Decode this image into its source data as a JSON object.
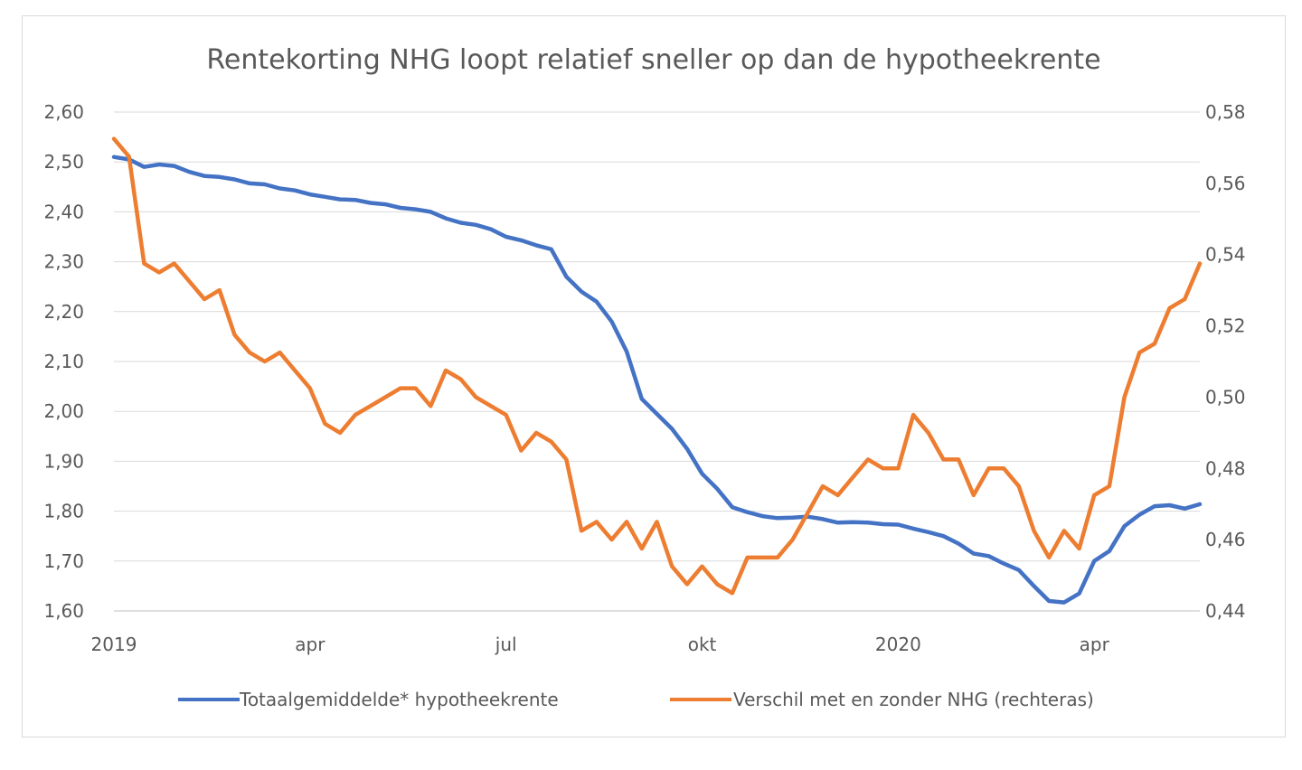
{
  "chart_data": {
    "type": "line",
    "title": "Rentekorting NHG loopt relatief sneller op dan de hypotheekrente",
    "xlabel": "",
    "ylabel": "",
    "x_tick_labels": [
      "2019",
      "apr",
      "jul",
      "okt",
      "2020",
      "apr"
    ],
    "x_tick_index": [
      0,
      13,
      26,
      39,
      52,
      65
    ],
    "y_left": {
      "ticks": [
        "2,60",
        "2,50",
        "2,40",
        "2,30",
        "2,20",
        "2,10",
        "2,00",
        "1,90",
        "1,80",
        "1,70",
        "1,60"
      ],
      "lim": [
        1.6,
        2.6
      ]
    },
    "y_right": {
      "ticks": [
        "0,58",
        "0,56",
        "0,54",
        "0,52",
        "0,50",
        "0,48",
        "0,46",
        "0,44"
      ],
      "lim": [
        0.44,
        0.58
      ]
    },
    "grid": true,
    "legend_position": "bottom",
    "series": [
      {
        "name": "Totaalgemiddelde* hypotheekrente",
        "axis": "left",
        "color": "#4472c4",
        "values": [
          2.51,
          2.505,
          2.49,
          2.495,
          2.492,
          2.48,
          2.472,
          2.47,
          2.465,
          2.457,
          2.455,
          2.447,
          2.443,
          2.435,
          2.43,
          2.425,
          2.424,
          2.418,
          2.415,
          2.408,
          2.405,
          2.4,
          2.387,
          2.378,
          2.374,
          2.365,
          2.35,
          2.343,
          2.333,
          2.325,
          2.27,
          2.24,
          2.22,
          2.18,
          2.12,
          2.025,
          1.995,
          1.965,
          1.925,
          1.875,
          1.845,
          1.808,
          1.798,
          1.79,
          1.786,
          1.787,
          1.789,
          1.784,
          1.777,
          1.778,
          1.777,
          1.774,
          1.773,
          1.765,
          1.758,
          1.75,
          1.735,
          1.715,
          1.71,
          1.695,
          1.682,
          1.65,
          1.62,
          1.617,
          1.635,
          1.7,
          1.72,
          1.77,
          1.793,
          1.81,
          1.812,
          1.805,
          1.814
        ]
      },
      {
        "name": "Verschil met en zonder NHG (rechteras)",
        "axis": "right",
        "color": "#ed7d31",
        "values": [
          0.5725,
          0.5675,
          0.5375,
          0.535,
          0.5375,
          0.5325,
          0.5275,
          0.53,
          0.5175,
          0.5125,
          0.51,
          0.5125,
          0.5075,
          0.5025,
          0.4925,
          0.49,
          0.495,
          0.4975,
          0.5,
          0.5025,
          0.5025,
          0.4975,
          0.5075,
          0.505,
          0.5,
          0.4975,
          0.495,
          0.485,
          0.49,
          0.4875,
          0.4825,
          0.4625,
          0.465,
          0.46,
          0.465,
          0.4575,
          0.465,
          0.4525,
          0.4475,
          0.4525,
          0.4475,
          0.445,
          0.455,
          0.455,
          0.455,
          0.46,
          0.4675,
          0.475,
          0.4725,
          0.4775,
          0.4825,
          0.48,
          0.48,
          0.495,
          0.49,
          0.4825,
          0.4825,
          0.4725,
          0.48,
          0.48,
          0.475,
          0.4625,
          0.455,
          0.4625,
          0.4575,
          0.4725,
          0.475,
          0.5,
          0.5125,
          0.515,
          0.525,
          0.5275,
          0.5375
        ]
      }
    ]
  }
}
